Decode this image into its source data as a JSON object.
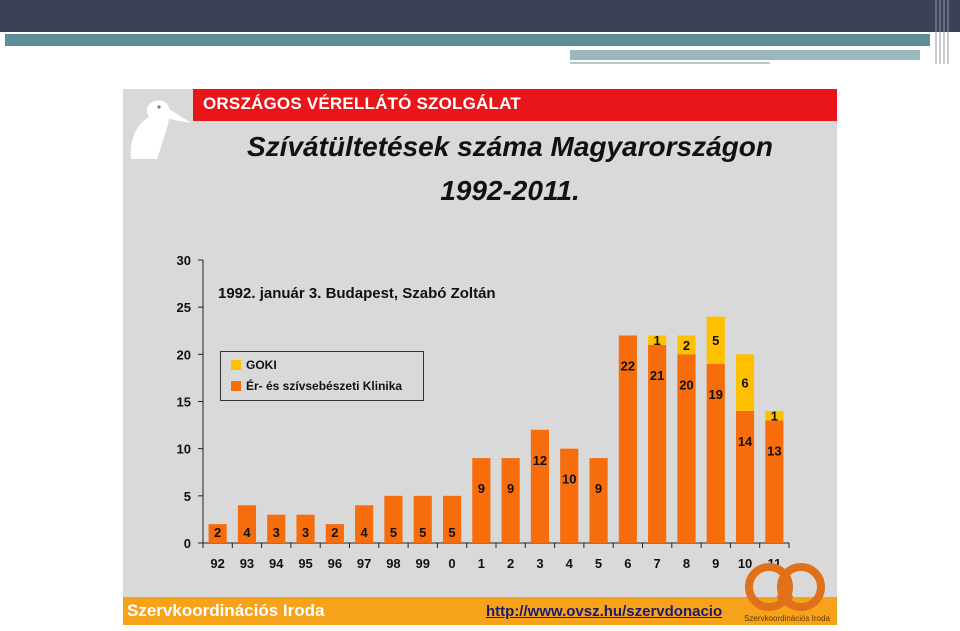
{
  "header": {
    "organization": "ORSZÁGOS VÉRELLÁTÓ SZOLGÁLAT"
  },
  "title_line1": "Szívátültetések száma Magyarországon",
  "title_line2": "1992-2011.",
  "annotation": "1992. január 3. Budapest, Szabó Zoltán",
  "footer": {
    "left_text": "Szervkoordinációs Iroda",
    "link": "http://www.ovsz.hu/szervdonacio",
    "logo_text": "Szervkoordinációs Iroda"
  },
  "colors": {
    "goki": "#ffc000",
    "klinika": "#f76d0b",
    "header_red": "#e8151b",
    "footer_orange": "#f7a21b"
  },
  "chart_data": {
    "type": "bar",
    "stacked": true,
    "categories": [
      "92",
      "93",
      "94",
      "95",
      "96",
      "97",
      "98",
      "99",
      "0",
      "1",
      "2",
      "3",
      "4",
      "5",
      "6",
      "7",
      "8",
      "9",
      "10",
      "11"
    ],
    "series": [
      {
        "name": "Ér- és szívsebészeti Klinika",
        "values": [
          2,
          4,
          3,
          3,
          2,
          4,
          5,
          5,
          5,
          9,
          9,
          12,
          10,
          9,
          22,
          21,
          20,
          19,
          14,
          13
        ]
      },
      {
        "name": "GOKI",
        "values": [
          0,
          0,
          0,
          0,
          0,
          0,
          0,
          0,
          0,
          0,
          0,
          0,
          0,
          0,
          0,
          1,
          2,
          5,
          6,
          1
        ]
      }
    ],
    "ylim": [
      0,
      30
    ],
    "yticks": [
      0,
      5,
      10,
      15,
      20,
      25,
      30
    ],
    "grid": false,
    "legend_position": "left"
  }
}
